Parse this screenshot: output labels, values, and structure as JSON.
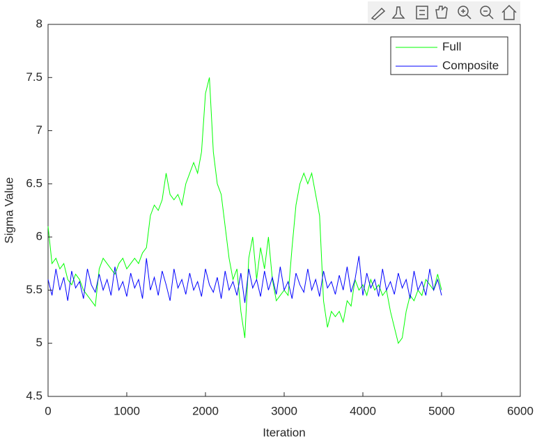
{
  "chart_data": {
    "type": "line",
    "xlabel": "Iteration",
    "ylabel": "Sigma Value",
    "xlim": [
      0,
      6000
    ],
    "xticks": [
      0,
      1000,
      2000,
      3000,
      4000,
      5000,
      6000
    ],
    "ylim": [
      4.5,
      8
    ],
    "yticks": [
      4.5,
      5,
      5.5,
      6,
      6.5,
      7,
      7.5,
      8
    ],
    "legend": "top-right",
    "x": [
      0,
      50,
      100,
      150,
      200,
      250,
      300,
      350,
      400,
      450,
      500,
      550,
      600,
      650,
      700,
      750,
      800,
      850,
      900,
      950,
      1000,
      1050,
      1100,
      1150,
      1200,
      1250,
      1300,
      1350,
      1400,
      1450,
      1500,
      1550,
      1600,
      1650,
      1700,
      1750,
      1800,
      1850,
      1900,
      1950,
      2000,
      2050,
      2100,
      2150,
      2200,
      2250,
      2300,
      2350,
      2400,
      2450,
      2500,
      2550,
      2600,
      2650,
      2700,
      2750,
      2800,
      2850,
      2900,
      2950,
      3000,
      3050,
      3100,
      3150,
      3200,
      3250,
      3300,
      3350,
      3400,
      3450,
      3500,
      3550,
      3600,
      3650,
      3700,
      3750,
      3800,
      3850,
      3900,
      3950,
      4000,
      4050,
      4100,
      4150,
      4200,
      4250,
      4300,
      4350,
      4400,
      4450,
      4500,
      4550,
      4600,
      4650,
      4700,
      4750,
      4800,
      4850,
      4900,
      4950,
      5000
    ],
    "series": [
      {
        "name": "Full",
        "color": "#00ff00",
        "values": [
          6.1,
          5.75,
          5.8,
          5.7,
          5.75,
          5.6,
          5.55,
          5.65,
          5.6,
          5.5,
          5.45,
          5.4,
          5.35,
          5.7,
          5.8,
          5.75,
          5.7,
          5.65,
          5.75,
          5.8,
          5.7,
          5.75,
          5.8,
          5.75,
          5.85,
          5.9,
          6.2,
          6.3,
          6.25,
          6.35,
          6.6,
          6.4,
          6.35,
          6.4,
          6.3,
          6.5,
          6.6,
          6.7,
          6.6,
          6.8,
          7.35,
          7.5,
          6.8,
          6.5,
          6.4,
          6.1,
          5.8,
          5.6,
          5.7,
          5.3,
          5.05,
          5.8,
          6.0,
          5.6,
          5.9,
          5.7,
          6.0,
          5.6,
          5.4,
          5.45,
          5.5,
          5.45,
          5.9,
          6.3,
          6.5,
          6.6,
          6.5,
          6.6,
          6.4,
          6.2,
          5.4,
          5.15,
          5.3,
          5.25,
          5.3,
          5.2,
          5.4,
          5.35,
          5.6,
          5.5,
          5.55,
          5.45,
          5.6,
          5.5,
          5.55,
          5.45,
          5.5,
          5.3,
          5.15,
          5.0,
          5.05,
          5.3,
          5.45,
          5.4,
          5.5,
          5.45,
          5.6,
          5.55,
          5.5,
          5.65,
          5.5
        ]
      },
      {
        "name": "Composite",
        "color": "#0000ff",
        "values": [
          5.6,
          5.45,
          5.7,
          5.5,
          5.62,
          5.4,
          5.68,
          5.52,
          5.58,
          5.42,
          5.7,
          5.55,
          5.48,
          5.65,
          5.5,
          5.6,
          5.45,
          5.72,
          5.5,
          5.58,
          5.44,
          5.66,
          5.52,
          5.6,
          5.42,
          5.8,
          5.5,
          5.62,
          5.45,
          5.68,
          5.55,
          5.4,
          5.7,
          5.52,
          5.6,
          5.46,
          5.66,
          5.5,
          5.58,
          5.44,
          5.7,
          5.55,
          5.48,
          5.62,
          5.42,
          5.68,
          5.5,
          5.58,
          5.45,
          5.66,
          5.38,
          5.7,
          5.52,
          5.6,
          5.44,
          5.68,
          5.5,
          5.62,
          5.46,
          5.72,
          5.5,
          5.58,
          5.42,
          5.66,
          5.55,
          5.48,
          5.7,
          5.5,
          5.6,
          5.44,
          5.68,
          5.52,
          5.58,
          5.46,
          5.64,
          5.5,
          5.72,
          5.48,
          5.6,
          5.82,
          5.45,
          5.66,
          5.52,
          5.6,
          5.44,
          5.7,
          5.5,
          5.58,
          5.46,
          5.66,
          5.52,
          5.6,
          5.42,
          5.68,
          5.5,
          5.58,
          5.45,
          5.7,
          5.5,
          5.6,
          5.45
        ]
      }
    ]
  }
}
